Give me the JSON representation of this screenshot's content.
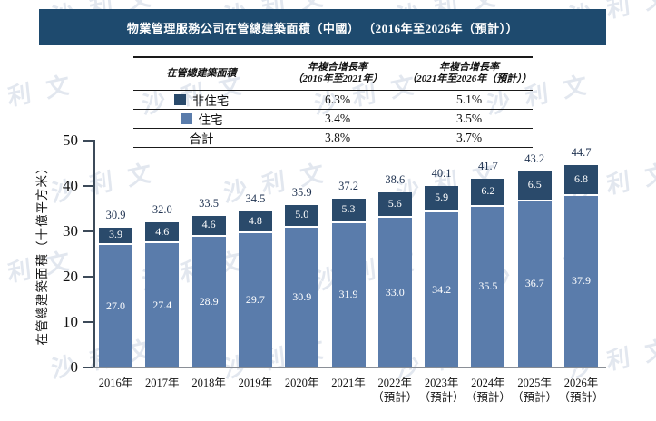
{
  "title": "物業管理服務公司在管總建築面積（中國） （2016年至2026年（預計））",
  "watermark_text": "沙利文",
  "colors": {
    "title_bar_bg": "#1e4a6e",
    "residential": "#5a7cab",
    "non_residential": "#2a4a6b",
    "total_label": "#1f3250",
    "watermark": "#ccd5e2"
  },
  "legend_table": {
    "area_header": "在管總建築面積",
    "cagr1_header_line1": "年複合增長率",
    "cagr1_header_line2": "（2016年至2021年）",
    "cagr2_header_line1": "年複合增長率",
    "cagr2_header_line2": "（2021年至2026年（預計））",
    "rows": [
      {
        "label": "非住宅",
        "swatch": "non_residential",
        "cagr_2016_2021": "6.3%",
        "cagr_2021_2026": "5.1%"
      },
      {
        "label": "住宅",
        "swatch": "residential",
        "cagr_2016_2021": "3.4%",
        "cagr_2021_2026": "3.5%"
      },
      {
        "label": "合計",
        "swatch": "",
        "cagr_2016_2021": "3.8%",
        "cagr_2021_2026": "3.7%"
      }
    ]
  },
  "chart_data": {
    "type": "bar",
    "stacked": true,
    "title": "物業管理服務公司在管總建築面積（中國）（2016年至2026年（預計））",
    "xlabel": "",
    "ylabel": "在管總建築面積（十億平方米）",
    "ylim": [
      0,
      50
    ],
    "yticks": [
      0,
      10,
      20,
      30,
      40,
      50
    ],
    "grid": false,
    "legend_position": "table-above-chart",
    "categories": [
      "2016年",
      "2017年",
      "2018年",
      "2019年",
      "2020年",
      "2021年",
      "2022年",
      "2023年",
      "2024年",
      "2025年",
      "2026年"
    ],
    "category_sublabels": [
      "",
      "",
      "",
      "",
      "",
      "",
      "（預計）",
      "（預計）",
      "（預計）",
      "（預計）",
      "（預計）"
    ],
    "series": [
      {
        "name": "住宅",
        "color": "#5a7cab",
        "values": [
          27.0,
          27.4,
          28.9,
          29.7,
          30.9,
          31.9,
          33.0,
          34.2,
          35.5,
          36.7,
          37.9
        ]
      },
      {
        "name": "非住宅",
        "color": "#2a4a6b",
        "values": [
          3.9,
          4.6,
          4.6,
          4.8,
          5.0,
          5.3,
          5.6,
          5.9,
          6.2,
          6.5,
          6.8
        ]
      }
    ],
    "totals": [
      30.9,
      32.0,
      33.5,
      34.5,
      35.9,
      37.2,
      38.6,
      40.1,
      41.7,
      43.2,
      44.7
    ]
  }
}
